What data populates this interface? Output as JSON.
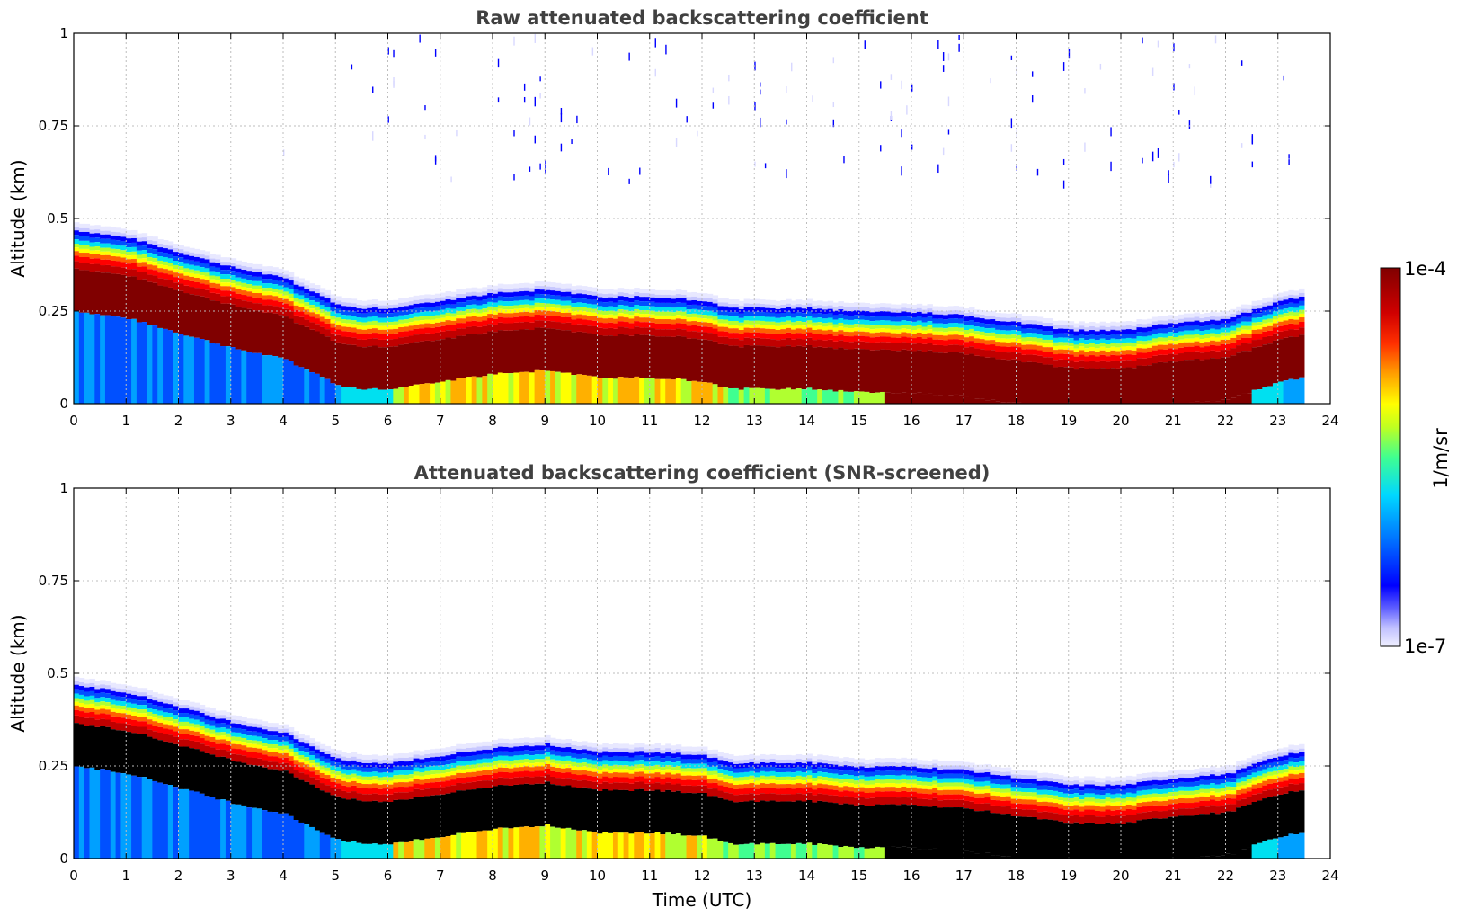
{
  "chart_data": [
    {
      "type": "heatmap",
      "title": "Raw attenuated backscattering coefficient",
      "xlabel": "",
      "ylabel": "Altitude (km)",
      "xlim": [
        0,
        24
      ],
      "ylim": [
        0,
        1
      ],
      "x_ticks": [
        "0",
        "1",
        "2",
        "3",
        "4",
        "5",
        "6",
        "7",
        "8",
        "9",
        "10",
        "11",
        "12",
        "13",
        "14",
        "15",
        "16",
        "17",
        "18",
        "19",
        "20",
        "21",
        "22",
        "23",
        "24"
      ],
      "y_ticks": [
        "0",
        "0.25",
        "0.5",
        "0.75",
        "1"
      ],
      "grid": true,
      "screened": false,
      "data_end_hour": 23.5,
      "layer_top_km": [
        [
          0,
          0.47
        ],
        [
          1,
          0.45
        ],
        [
          2,
          0.41
        ],
        [
          3,
          0.37
        ],
        [
          4,
          0.34
        ],
        [
          5,
          0.27
        ],
        [
          5.5,
          0.26
        ],
        [
          6,
          0.26
        ],
        [
          7,
          0.28
        ],
        [
          8,
          0.3
        ],
        [
          9,
          0.31
        ],
        [
          10,
          0.29
        ],
        [
          11,
          0.29
        ],
        [
          12,
          0.28
        ],
        [
          12.5,
          0.26
        ],
        [
          13,
          0.26
        ],
        [
          14,
          0.26
        ],
        [
          15,
          0.25
        ],
        [
          16,
          0.25
        ],
        [
          17,
          0.24
        ],
        [
          18,
          0.22
        ],
        [
          19,
          0.2
        ],
        [
          20,
          0.2
        ],
        [
          21,
          0.22
        ],
        [
          22,
          0.23
        ],
        [
          23,
          0.28
        ],
        [
          23.5,
          0.29
        ]
      ]
    },
    {
      "type": "heatmap",
      "title": "Attenuated backscattering coefficient (SNR-screened)",
      "xlabel": "Time (UTC)",
      "ylabel": "Altitude (km)",
      "xlim": [
        0,
        24
      ],
      "ylim": [
        0,
        1
      ],
      "x_ticks": [
        "0",
        "1",
        "2",
        "3",
        "4",
        "5",
        "6",
        "7",
        "8",
        "9",
        "10",
        "11",
        "12",
        "13",
        "14",
        "15",
        "16",
        "17",
        "18",
        "19",
        "20",
        "21",
        "22",
        "23",
        "24"
      ],
      "y_ticks": [
        "0",
        "0.25",
        "0.5",
        "0.75",
        "1"
      ],
      "grid": true,
      "screened": true,
      "data_end_hour": 23.5,
      "layer_top_km": [
        [
          0,
          0.47
        ],
        [
          1,
          0.45
        ],
        [
          2,
          0.41
        ],
        [
          3,
          0.37
        ],
        [
          4,
          0.34
        ],
        [
          5,
          0.27
        ],
        [
          5.5,
          0.26
        ],
        [
          6,
          0.26
        ],
        [
          7,
          0.28
        ],
        [
          8,
          0.3
        ],
        [
          9,
          0.31
        ],
        [
          10,
          0.29
        ],
        [
          11,
          0.29
        ],
        [
          12,
          0.28
        ],
        [
          12.5,
          0.26
        ],
        [
          13,
          0.26
        ],
        [
          14,
          0.26
        ],
        [
          15,
          0.25
        ],
        [
          16,
          0.25
        ],
        [
          17,
          0.24
        ],
        [
          18,
          0.22
        ],
        [
          19,
          0.2
        ],
        [
          20,
          0.2
        ],
        [
          21,
          0.22
        ],
        [
          22,
          0.23
        ],
        [
          23,
          0.28
        ],
        [
          23.5,
          0.29
        ]
      ]
    }
  ],
  "colorbar": {
    "max_label": "1e-4",
    "min_label": "1e-7",
    "unit_label": "1/m/sr",
    "colors": [
      "#e8e8ff",
      "#c8c8ff",
      "#8080ff",
      "#0000ff",
      "#0050ff",
      "#00a0ff",
      "#00e0f0",
      "#40ff90",
      "#b0ff30",
      "#ffff00",
      "#ffb000",
      "#ff6000",
      "#ff0000",
      "#c00000",
      "#800000"
    ]
  }
}
